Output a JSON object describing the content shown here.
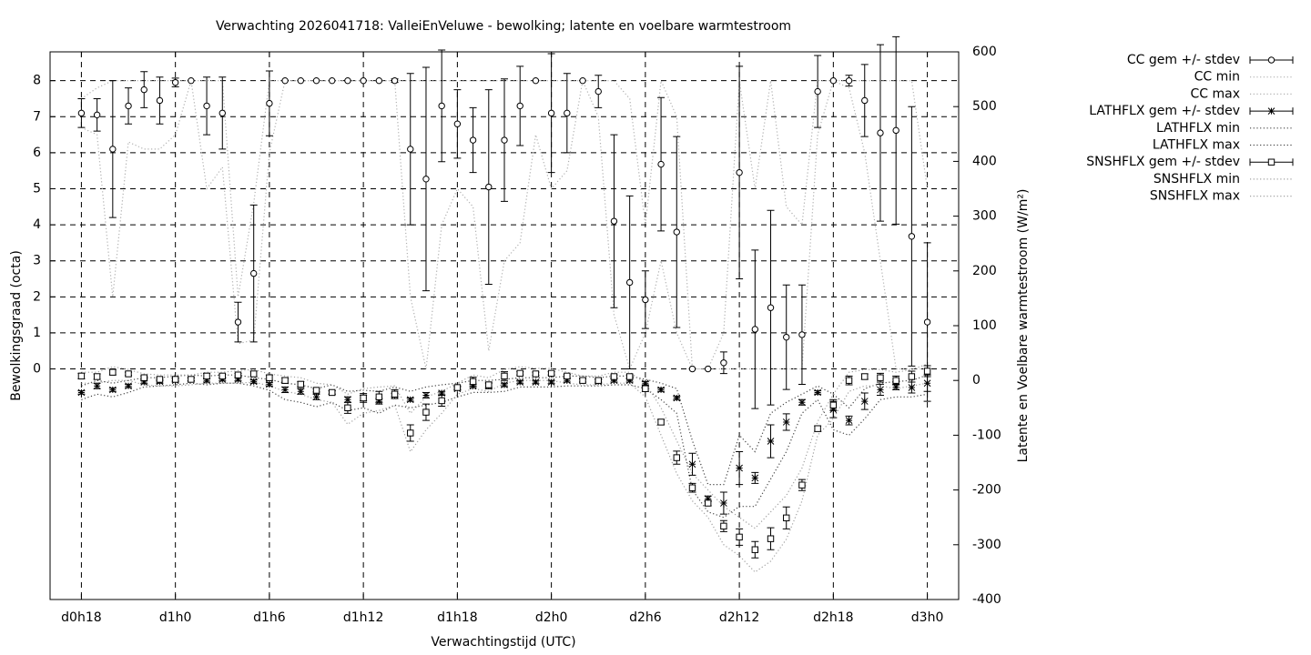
{
  "chart_data": {
    "type": "line",
    "title": "Verwachting 2026041718: ValleiEnVeluwe - bewolking; latente en voelbare warmtestroom",
    "x_label": "Verwachtingstijd (UTC)",
    "y_label": "Bewolkingsgraad (octa)",
    "y2_label": "Latente en Voelbare warmtestroom (W/m²)",
    "x": [
      18,
      19,
      20,
      21,
      22,
      23,
      24,
      25,
      26,
      27,
      28,
      29,
      30,
      31,
      32,
      33,
      34,
      35,
      36,
      37,
      38,
      39,
      40,
      41,
      42,
      43,
      44,
      45,
      46,
      47,
      48,
      49,
      50,
      51,
      52,
      53,
      54,
      55,
      56,
      57,
      58,
      59,
      60,
      61,
      62,
      63,
      64,
      65,
      66,
      67,
      68,
      69,
      70,
      71,
      72
    ],
    "xlim": [
      16,
      74
    ],
    "xticks": [
      {
        "value": 18,
        "label": "d0h18"
      },
      {
        "value": 24,
        "label": "d1h0"
      },
      {
        "value": 30,
        "label": "d1h6"
      },
      {
        "value": 36,
        "label": "d1h12"
      },
      {
        "value": 42,
        "label": "d1h18"
      },
      {
        "value": 48,
        "label": "d2h0"
      },
      {
        "value": 54,
        "label": "d2h6"
      },
      {
        "value": 60,
        "label": "d2h12"
      },
      {
        "value": 66,
        "label": "d2h18"
      },
      {
        "value": 72,
        "label": "d3h0"
      }
    ],
    "ylim": [
      -6.4,
      8.8
    ],
    "yticks": [
      0,
      1,
      2,
      3,
      4,
      5,
      6,
      7,
      8
    ],
    "y2lim": [
      -400,
      600
    ],
    "y2ticks": [
      -400,
      -300,
      -200,
      -100,
      0,
      100,
      200,
      300,
      400,
      500,
      600
    ],
    "grid": true,
    "legend": "outside-top-right",
    "series": [
      {
        "name": "CC gem +/- stdev",
        "style": "errorbars",
        "marker": "circle",
        "color": "#000000",
        "values": [
          7.1,
          7.05,
          6.1,
          7.3,
          7.75,
          7.45,
          7.95,
          8,
          7.3,
          7.1,
          1.3,
          2.65,
          7.37,
          8,
          8,
          8,
          8,
          8,
          8,
          8,
          8,
          6.1,
          5.27,
          7.3,
          6.8,
          6.35,
          5.05,
          6.35,
          7.3,
          8,
          7.1,
          7.1,
          8,
          7.7,
          4.1,
          2.4,
          1.92,
          5.68,
          3.8,
          0,
          0,
          0.17,
          5.45,
          1.1,
          1.7,
          0.88,
          0.95,
          7.7,
          8,
          8,
          7.45,
          6.55,
          6.62,
          3.68,
          1.3
        ],
        "errors": [
          0.4,
          0.45,
          1.9,
          0.5,
          0.5,
          0.65,
          0.12,
          0,
          0.8,
          1.0,
          0.55,
          1.9,
          0.9,
          0,
          0,
          0,
          0,
          0,
          0,
          0,
          0.05,
          2.1,
          3.1,
          1.55,
          0.95,
          0.9,
          2.7,
          1.7,
          1.1,
          0,
          1.65,
          1.1,
          0,
          0.45,
          2.4,
          2.4,
          0.8,
          1.85,
          2.65,
          0,
          0,
          0.3,
          2.95,
          2.2,
          2.7,
          1.45,
          1.38,
          1.0,
          0,
          0.15,
          1.0,
          2.45,
          2.6,
          3.6,
          2.2
        ]
      },
      {
        "name": "CC min",
        "style": "dotted",
        "color": "#b0b0b0",
        "values": [
          6.7,
          6.5,
          2.0,
          6.3,
          6.1,
          6.1,
          6.5,
          8,
          5.0,
          5.6,
          0.7,
          0.8,
          6.0,
          8,
          8,
          8,
          8,
          8,
          8,
          8,
          8,
          2.0,
          0,
          4.0,
          5.0,
          4.5,
          0.5,
          3.0,
          3.5,
          6.5,
          5.0,
          5.5,
          8,
          7.0,
          1.5,
          0,
          1.0,
          3.0,
          1.0,
          0,
          0,
          0,
          0,
          0,
          0,
          0,
          0,
          6.5,
          8,
          7.8,
          6.0,
          3.0,
          0,
          0,
          0
        ]
      },
      {
        "name": "CC max",
        "style": "dotted",
        "color": "#b0b0b0",
        "values": [
          7.5,
          7.8,
          8,
          8,
          8,
          8,
          8,
          8,
          8,
          8,
          2.0,
          4.6,
          8,
          8,
          8,
          8,
          8,
          8,
          8,
          8,
          8,
          8,
          8,
          8,
          8,
          8,
          8,
          8,
          8,
          8,
          8,
          8,
          8,
          8,
          8,
          7.5,
          4.0,
          8,
          7.0,
          0,
          0,
          1.0,
          8,
          5.0,
          8,
          4.5,
          4.0,
          8,
          8,
          8,
          8,
          8,
          8,
          8,
          5.0
        ]
      },
      {
        "name": "LATHFLX gem +/- stdev",
        "style": "errorbars",
        "marker": "star",
        "color": "#000000",
        "axis": "y2",
        "values": [
          -22,
          -10,
          -17,
          -10,
          -3,
          -2,
          0,
          2,
          0,
          2,
          2,
          -2,
          -7,
          -17,
          -20,
          -30,
          -22,
          -35,
          -32,
          -38,
          -27,
          -35,
          -27,
          -23,
          -15,
          -10,
          -10,
          -8,
          -3,
          -3,
          -3,
          0,
          0,
          -2,
          0,
          0,
          -5,
          -17,
          -32,
          -153,
          -216,
          -224,
          -160,
          -178,
          -111,
          -76,
          -40,
          -22,
          -53,
          -73,
          -38,
          -17,
          -12,
          -13,
          -5
        ],
        "errors": [
          3,
          5,
          3,
          3,
          3,
          3,
          3,
          3,
          3,
          3,
          3,
          3,
          3,
          5,
          5,
          5,
          3,
          5,
          5,
          5,
          3,
          3,
          5,
          3,
          3,
          3,
          5,
          3,
          3,
          3,
          3,
          3,
          3,
          3,
          3,
          3,
          3,
          3,
          3,
          20,
          5,
          20,
          30,
          10,
          30,
          15,
          5,
          3,
          15,
          8,
          15,
          10,
          5,
          10,
          15
        ]
      },
      {
        "name": "LATHFLX min",
        "style": "dotted",
        "color": "#444444",
        "axis": "y2",
        "values": [
          -35,
          -25,
          -30,
          -22,
          -12,
          -10,
          -8,
          -5,
          -8,
          -5,
          -5,
          -10,
          -18,
          -35,
          -40,
          -48,
          -40,
          -55,
          -50,
          -60,
          -45,
          -50,
          -45,
          -40,
          -30,
          -22,
          -22,
          -20,
          -12,
          -12,
          -12,
          -10,
          -10,
          -10,
          -8,
          -8,
          -15,
          -35,
          -60,
          -200,
          -240,
          -250,
          -230,
          -230,
          -180,
          -130,
          -60,
          -35,
          -90,
          -100,
          -70,
          -35,
          -30,
          -30,
          -25
        ]
      },
      {
        "name": "LATHFLX max",
        "style": "dotted",
        "color": "#444444",
        "axis": "y2",
        "values": [
          -10,
          0,
          -5,
          0,
          5,
          5,
          8,
          10,
          8,
          10,
          10,
          5,
          2,
          -5,
          -8,
          -15,
          -8,
          -20,
          -18,
          -20,
          -12,
          -20,
          -12,
          -8,
          -5,
          0,
          0,
          2,
          5,
          5,
          5,
          8,
          8,
          5,
          8,
          8,
          2,
          -5,
          -15,
          -110,
          -190,
          -190,
          -100,
          -130,
          -60,
          -40,
          -25,
          -10,
          -25,
          -50,
          -15,
          -5,
          -2,
          0,
          10
        ]
      },
      {
        "name": "SNSHFLX gem +/- stdev",
        "style": "errorbars",
        "marker": "square",
        "color": "#000000",
        "axis": "y2",
        "values": [
          8,
          7,
          15,
          12,
          5,
          2,
          2,
          2,
          8,
          8,
          10,
          12,
          5,
          0,
          -7,
          -18,
          -22,
          -50,
          -32,
          -30,
          -25,
          -96,
          -58,
          -37,
          -13,
          -2,
          -8,
          8,
          13,
          12,
          13,
          8,
          0,
          0,
          7,
          7,
          -15,
          -76,
          -141,
          -196,
          -224,
          -266,
          -286,
          -309,
          -289,
          -251,
          -191,
          -88,
          -45,
          0,
          7,
          5,
          0,
          7,
          17
        ],
        "errors": [
          5,
          5,
          5,
          3,
          3,
          3,
          3,
          3,
          5,
          3,
          3,
          5,
          5,
          5,
          5,
          3,
          3,
          10,
          8,
          10,
          8,
          15,
          15,
          10,
          3,
          8,
          5,
          8,
          3,
          3,
          3,
          3,
          3,
          3,
          3,
          3,
          5,
          5,
          12,
          8,
          5,
          10,
          15,
          15,
          20,
          20,
          10,
          5,
          10,
          8,
          5,
          8,
          8,
          10,
          10
        ]
      },
      {
        "name": "SNSHFLX min",
        "style": "dotted",
        "color": "#a0a0a0",
        "axis": "y2",
        "values": [
          -5,
          -5,
          0,
          0,
          -8,
          -10,
          -10,
          -8,
          -5,
          -5,
          -5,
          -3,
          -10,
          -20,
          -25,
          -35,
          -40,
          -80,
          -60,
          -55,
          -45,
          -130,
          -90,
          -60,
          -25,
          -15,
          -20,
          -5,
          0,
          0,
          0,
          -5,
          -8,
          -8,
          -5,
          -5,
          -30,
          -100,
          -170,
          -220,
          -250,
          -300,
          -320,
          -350,
          -330,
          -290,
          -220,
          -100,
          -70,
          -20,
          -10,
          -10,
          -15,
          -10,
          -5
        ]
      },
      {
        "name": "SNSHFLX max",
        "style": "dotted",
        "color": "#a0a0a0",
        "axis": "y2",
        "values": [
          15,
          15,
          25,
          20,
          12,
          10,
          10,
          10,
          15,
          15,
          18,
          20,
          12,
          8,
          5,
          -5,
          -8,
          -25,
          -15,
          -12,
          -10,
          -60,
          -30,
          -20,
          -5,
          10,
          5,
          20,
          25,
          22,
          22,
          15,
          8,
          8,
          15,
          15,
          -5,
          -50,
          -110,
          -170,
          -200,
          -230,
          -250,
          -270,
          -240,
          -210,
          -160,
          -75,
          -25,
          15,
          20,
          20,
          15,
          20,
          30
        ]
      }
    ]
  }
}
